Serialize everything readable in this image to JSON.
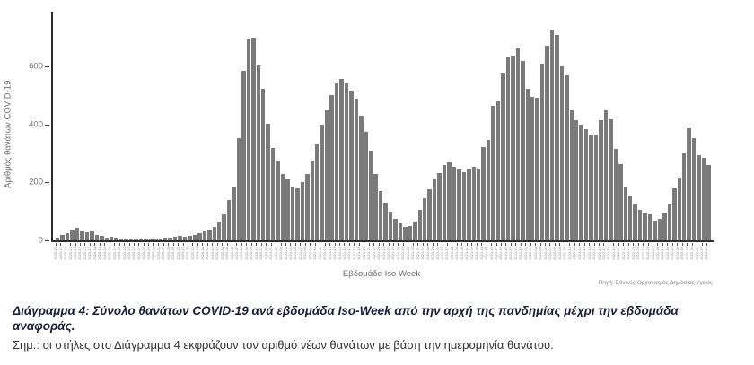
{
  "chart": {
    "y_axis_label": "Αριθμός θανάτων COVID-19",
    "x_axis_label": "Εβδομάδα Iso Week",
    "y_ticks": [
      0,
      200,
      400,
      600
    ],
    "source": "Πηγή: Εθνικός Οργανισμός Δημόσιας Υγείας",
    "bar_color": "#7a7a7a",
    "axis_color": "#2e2e2e"
  },
  "caption": {
    "text": "Διάγραμμα 4: Σύνολο θανάτων COVID-19 ανά εβδομάδα Iso-Week από την αρχή της πανδημίας μέχρι την εβδομάδα αναφοράς."
  },
  "note": "Σημ.: οι στήλες στο Διάγραμμα 4 εκφράζουν τον αριθμό νέων θανάτων με βάση την ημερομηνία θανάτου.",
  "chart_data": {
    "type": "bar",
    "title": "",
    "xlabel": "Εβδομάδα Iso Week",
    "ylabel": "Αριθμός θανάτων COVID-19",
    "ylim": [
      0,
      789
    ],
    "grid": false,
    "legend": "none",
    "categories": [
      "2020-10",
      "2020-11",
      "2020-12",
      "2020-13",
      "2020-14",
      "2020-15",
      "2020-16",
      "2020-17",
      "2020-18",
      "2020-19",
      "2020-20",
      "2020-21",
      "2020-22",
      "2020-23",
      "2020-24",
      "2020-25",
      "2020-26",
      "2020-27",
      "2020-28",
      "2020-29",
      "2020-30",
      "2020-31",
      "2020-32",
      "2020-33",
      "2020-34",
      "2020-35",
      "2020-36",
      "2020-37",
      "2020-38",
      "2020-39",
      "2020-40",
      "2020-41",
      "2020-42",
      "2020-43",
      "2020-44",
      "2020-45",
      "2020-46",
      "2020-47",
      "2020-48",
      "2020-49",
      "2020-50",
      "2020-51",
      "2020-52",
      "2020-53",
      "2021-01",
      "2021-02",
      "2021-03",
      "2021-04",
      "2021-05",
      "2021-06",
      "2021-07",
      "2021-08",
      "2021-09",
      "2021-10",
      "2021-11",
      "2021-12",
      "2021-13",
      "2021-14",
      "2021-15",
      "2021-16",
      "2021-17",
      "2021-18",
      "2021-19",
      "2021-20",
      "2021-21",
      "2021-22",
      "2021-23",
      "2021-24",
      "2021-25",
      "2021-26",
      "2021-27",
      "2021-28",
      "2021-29",
      "2021-30",
      "2021-31",
      "2021-32",
      "2021-33",
      "2021-34",
      "2021-35",
      "2021-36",
      "2021-37",
      "2021-38",
      "2021-39",
      "2021-40",
      "2021-41",
      "2021-42",
      "2021-43",
      "2021-44",
      "2021-45",
      "2021-46",
      "2021-47",
      "2021-48",
      "2021-49",
      "2021-50",
      "2021-51",
      "2021-52",
      "2022-01",
      "2022-02",
      "2022-03",
      "2022-04",
      "2022-05",
      "2022-06",
      "2022-07",
      "2022-08",
      "2022-09",
      "2022-10",
      "2022-11",
      "2022-12",
      "2022-13",
      "2022-14",
      "2022-15",
      "2022-16",
      "2022-17",
      "2022-18",
      "2022-19",
      "2022-20",
      "2022-21",
      "2022-22",
      "2022-23",
      "2022-24",
      "2022-25",
      "2022-26",
      "2022-27",
      "2022-28",
      "2022-29",
      "2022-30",
      "2022-31",
      "2022-32",
      "2022-33",
      "2022-34",
      "2022-35",
      "2022-36",
      "2022-37",
      "2022-38"
    ],
    "values": [
      8,
      18,
      25,
      35,
      42,
      30,
      28,
      32,
      18,
      15,
      10,
      12,
      8,
      5,
      3,
      4,
      2,
      3,
      2,
      3,
      3,
      5,
      8,
      10,
      12,
      15,
      12,
      15,
      18,
      25,
      30,
      35,
      45,
      65,
      90,
      140,
      186,
      352,
      584,
      692,
      698,
      603,
      522,
      402,
      320,
      275,
      230,
      210,
      185,
      180,
      200,
      230,
      275,
      330,
      400,
      450,
      500,
      540,
      557,
      540,
      516,
      490,
      430,
      375,
      310,
      230,
      170,
      130,
      100,
      75,
      60,
      45,
      50,
      65,
      105,
      145,
      176,
      210,
      232,
      260,
      270,
      255,
      245,
      235,
      247,
      255,
      247,
      321,
      346,
      464,
      479,
      578,
      630,
      634,
      661,
      618,
      522,
      494,
      491,
      609,
      671,
      727,
      708,
      599,
      569,
      449,
      414,
      398,
      383,
      362,
      362,
      414,
      449,
      418,
      315,
      263,
      186,
      155,
      124,
      105,
      93,
      90,
      68,
      74,
      96,
      124,
      181,
      213,
      300,
      387,
      352,
      295,
      284,
      260
    ]
  }
}
